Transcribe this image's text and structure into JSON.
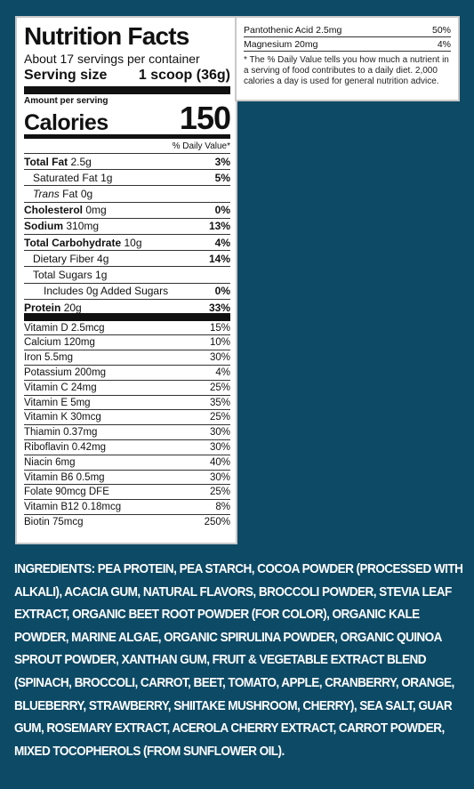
{
  "facts": {
    "title": "Nutrition Facts",
    "servings": "About 17 servings per container",
    "serving_size_label": "Serving size",
    "serving_size_value": "1 scoop (36g)",
    "amount_per_serving": "Amount per serving",
    "calories_label": "Calories",
    "calories_value": "150",
    "dv_header": "% Daily Value*",
    "nutrients": [
      {
        "name": "Total Fat",
        "amount": "2.5g",
        "dv": "3%"
      },
      {
        "name": "Saturated Fat",
        "amount": "1g",
        "dv": "5%"
      },
      {
        "name": "Trans",
        "amount": "Fat 0g",
        "dv": ""
      },
      {
        "name": "Cholesterol",
        "amount": "0mg",
        "dv": "0%"
      },
      {
        "name": "Sodium",
        "amount": "310mg",
        "dv": "13%"
      },
      {
        "name": "Total Carbohydrate",
        "amount": "10g",
        "dv": "4%"
      },
      {
        "name": "Dietary Fiber",
        "amount": "4g",
        "dv": "14%"
      },
      {
        "name": "Total Sugars",
        "amount": "1g",
        "dv": ""
      },
      {
        "name": "Includes 0g Added Sugars",
        "amount": "",
        "dv": "0%"
      },
      {
        "name": "Protein",
        "amount": "20g",
        "dv": "33%"
      }
    ],
    "vitamins": [
      {
        "name": "Vitamin D 2.5mcg",
        "dv": "15%"
      },
      {
        "name": "Calcium 120mg",
        "dv": "10%"
      },
      {
        "name": "Iron 5.5mg",
        "dv": "30%"
      },
      {
        "name": "Potassium 200mg",
        "dv": "4%"
      },
      {
        "name": "Vitamin C 24mg",
        "dv": "25%"
      },
      {
        "name": "Vitamin E 5mg",
        "dv": "35%"
      },
      {
        "name": "Vitamin K 30mcg",
        "dv": "25%"
      },
      {
        "name": "Thiamin 0.37mg",
        "dv": "30%"
      },
      {
        "name": "Riboflavin 0.42mg",
        "dv": "30%"
      },
      {
        "name": "Niacin 6mg",
        "dv": "40%"
      },
      {
        "name": "Vitamin B6 0.5mg",
        "dv": "30%"
      },
      {
        "name": "Folate 90mcg DFE",
        "dv": "25%"
      },
      {
        "name": "Vitamin B12 0.18mcg",
        "dv": "8%"
      },
      {
        "name": "Biotin 75mcg",
        "dv": "250%"
      }
    ]
  },
  "side": {
    "rows": [
      {
        "name": "Pantothenic Acid 2.5mg",
        "dv": "50%"
      },
      {
        "name": "Magnesium 20mg",
        "dv": "4%"
      }
    ],
    "footnote": "* The % Daily Value tells you how much a nutrient in a serving of food contributes to a daily diet. 2,000 calories a day is used for general nutrition advice."
  },
  "ingredients": {
    "label": "INGREDIENTS:",
    "text": " PEA PROTEIN,  PEA STARCH, COCOA POWDER (PROCESSED WITH ALKALI), ACACIA GUM, NATURAL FLAVORS, BROCCOLI POWDER, STEVIA LEAF EXTRACT, ORGANIC BEET ROOT POWDER (FOR COLOR), ORGANIC KALE POWDER, MARINE ALGAE,  ORGANIC SPIRULINA POWDER, ORGANIC QUINOA SPROUT POWDER, XANTHAN GUM, FRUIT & VEGETABLE EXTRACT BLEND (SPINACH, BROCCOLI, CARROT, BEET, TOMATO, APPLE, CRANBERRY, ORANGE, BLUEBERRY, STRAWBERRY, SHIITAKE MUSHROOM, CHERRY), SEA SALT,  GUAR GUM, ROSEMARY EXTRACT, ACEROLA CHERRY EXTRACT, CARROT POWDER, MIXED TOCOPHEROLS (FROM SUNFLOWER OIL)."
  }
}
